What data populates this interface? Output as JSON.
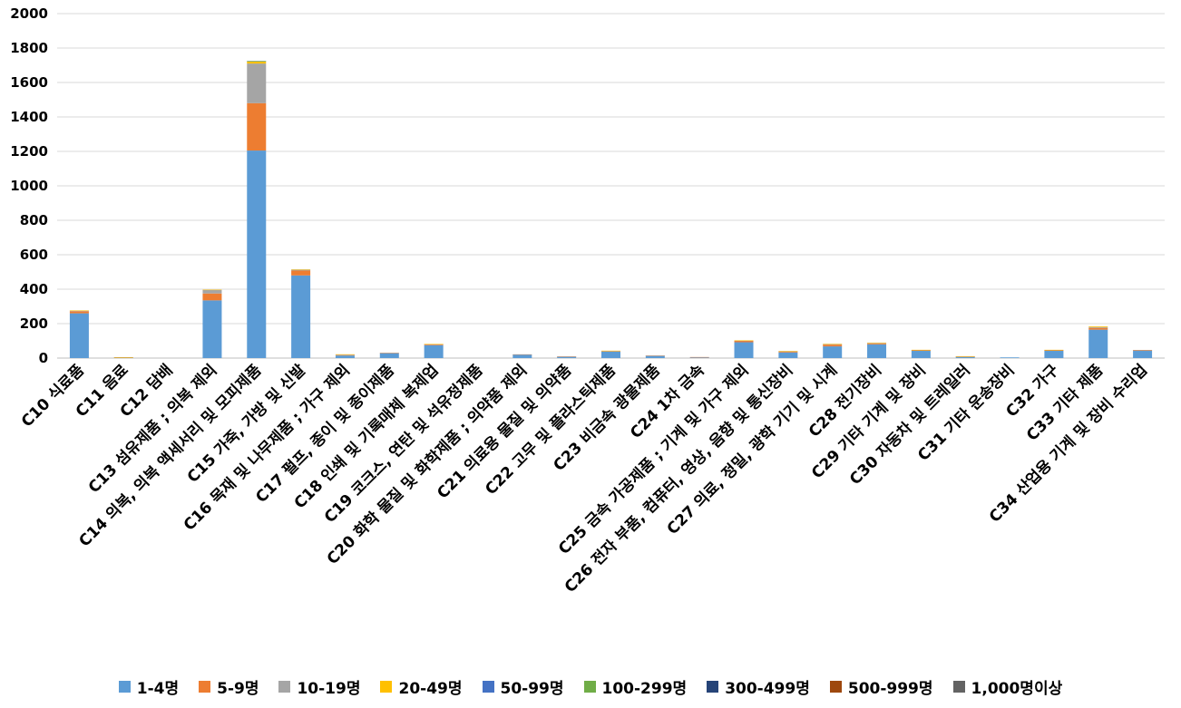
{
  "chart_data": {
    "type": "bar",
    "stacked": true,
    "title": "",
    "xlabel": "",
    "ylabel": "",
    "ylim": [
      0,
      2000
    ],
    "ytick_step": 200,
    "grid": true,
    "legend_position": "bottom",
    "categories": [
      "C10 식료품",
      "C11 음료",
      "C12 담배",
      "C13 섬유제품 ; 의복 제외",
      "C14 의복, 의복 액세서리 및 모피제품",
      "C15 가죽, 가방 및 신발",
      "C16 목재 및 나무제품 ; 가구 제외",
      "C17 펄프, 종이 및 종이제품",
      "C18 인쇄 및 기록매체 복제업",
      "C19 코크스, 연탄 및 석유정제품",
      "C20 화학 물질 및 화학제품 ; 의약품 제외",
      "C21 의료용 물질 및 의약품",
      "C22 고무 및 플라스틱제품",
      "C23 비금속 광물제품",
      "C24 1차 금속",
      "C25 금속 가공제품 ; 기계 및 가구 제외",
      "C26 전자 부품, 컴퓨터, 영상, 음향 및 통신장비",
      "C27 의료, 정밀, 광학 기기 및 시계",
      "C28 전기장비",
      "C29 기타 기계 및 장비",
      "C30 자동차 및 트레일러",
      "C31 기타 운송장비",
      "C32 가구",
      "C33 기타 제품",
      "C34 산업용 기계 및 장비 수리업"
    ],
    "series": [
      {
        "name": "1-4명",
        "color": "#5B9BD5",
        "values": [
          260,
          3,
          0,
          335,
          1205,
          480,
          15,
          28,
          75,
          0,
          20,
          7,
          38,
          12,
          4,
          92,
          33,
          68,
          80,
          42,
          7,
          4,
          42,
          165,
          42
        ]
      },
      {
        "name": "5-9명",
        "color": "#ED7D31",
        "values": [
          12,
          1,
          0,
          40,
          275,
          28,
          3,
          2,
          5,
          0,
          1,
          2,
          3,
          3,
          2,
          8,
          5,
          10,
          5,
          4,
          1,
          0,
          4,
          10,
          4
        ]
      },
      {
        "name": "10-19명",
        "color": "#A5A5A5",
        "values": [
          3,
          0,
          0,
          20,
          230,
          5,
          2,
          1,
          1,
          0,
          1,
          1,
          1,
          1,
          0,
          2,
          2,
          3,
          3,
          1,
          1,
          0,
          1,
          5,
          1
        ]
      },
      {
        "name": "20-49명",
        "color": "#FFC000",
        "values": [
          2,
          1,
          0,
          2,
          12,
          2,
          2,
          0,
          1,
          0,
          0,
          0,
          1,
          0,
          0,
          1,
          1,
          2,
          2,
          1,
          2,
          0,
          1,
          4,
          0
        ]
      },
      {
        "name": "50-99명",
        "color": "#4472C4",
        "values": [
          0,
          0,
          0,
          0,
          2,
          0,
          0,
          0,
          0,
          0,
          0,
          0,
          0,
          0,
          0,
          0,
          0,
          0,
          0,
          0,
          0,
          0,
          0,
          0,
          0
        ]
      },
      {
        "name": "100-299명",
        "color": "#70AD47",
        "values": [
          0,
          0,
          0,
          0,
          1,
          0,
          0,
          0,
          0,
          0,
          0,
          0,
          0,
          0,
          0,
          0,
          0,
          0,
          0,
          0,
          0,
          0,
          0,
          0,
          0
        ]
      },
      {
        "name": "300-499명",
        "color": "#264478",
        "values": [
          0,
          0,
          0,
          0,
          0,
          0,
          0,
          0,
          0,
          0,
          0,
          0,
          0,
          0,
          0,
          0,
          0,
          0,
          0,
          0,
          0,
          0,
          0,
          0,
          0
        ]
      },
      {
        "name": "500-999명",
        "color": "#9E480E",
        "values": [
          0,
          0,
          0,
          0,
          0,
          0,
          0,
          0,
          0,
          0,
          0,
          0,
          0,
          0,
          0,
          0,
          0,
          0,
          0,
          0,
          0,
          0,
          0,
          0,
          0
        ]
      },
      {
        "name": "1,000명이상",
        "color": "#636363",
        "values": [
          0,
          0,
          0,
          0,
          0,
          0,
          0,
          0,
          0,
          0,
          0,
          0,
          0,
          0,
          0,
          0,
          0,
          0,
          0,
          0,
          0,
          0,
          0,
          0,
          0
        ]
      }
    ]
  }
}
